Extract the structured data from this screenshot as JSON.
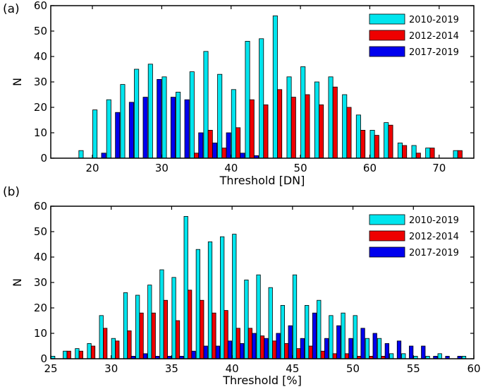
{
  "chart_data": [
    {
      "type": "bar",
      "panel_label": "(a)",
      "xlabel": "Threshold [DN]",
      "ylabel": "N",
      "xlim": [
        14,
        75
      ],
      "ylim": [
        0,
        60
      ],
      "xticks": [
        20,
        30,
        40,
        50,
        60,
        70
      ],
      "yticks": [
        0,
        10,
        20,
        30,
        40,
        50,
        60
      ],
      "grid": false,
      "legend_position": "top-right",
      "bar_group_step": 2,
      "series": [
        {
          "name": "2010-2019",
          "color": "#00e5ee",
          "x": [
            19,
            21,
            23,
            25,
            27,
            29,
            31,
            33,
            35,
            37,
            39,
            41,
            43,
            45,
            47,
            49,
            51,
            53,
            55,
            57,
            59,
            61,
            63,
            65,
            67,
            69,
            73
          ],
          "values": [
            3,
            19,
            23,
            29,
            35,
            37,
            32,
            26,
            34,
            42,
            33,
            27,
            46,
            47,
            56,
            32,
            36,
            30,
            32,
            25,
            17,
            11,
            14,
            6,
            5,
            4,
            3
          ]
        },
        {
          "name": "2012-2014",
          "color": "#ee0000",
          "x": [
            35,
            37,
            39,
            41,
            43,
            45,
            47,
            49,
            51,
            53,
            55,
            57,
            59,
            61,
            63,
            65,
            67,
            69,
            73
          ],
          "values": [
            2,
            11,
            4,
            12,
            23,
            21,
            27,
            24,
            25,
            21,
            28,
            20,
            11,
            9,
            13,
            5,
            2,
            4,
            3
          ]
        },
        {
          "name": "2017-2019",
          "color": "#0000ee",
          "x": [
            21,
            23,
            25,
            27,
            29,
            31,
            33,
            35,
            37,
            39,
            41,
            43
          ],
          "values": [
            2,
            18,
            22,
            24,
            31,
            24,
            23,
            10,
            6,
            10,
            2,
            1
          ]
        }
      ]
    },
    {
      "type": "bar",
      "panel_label": "(b)",
      "xlabel": "Threshold [%]",
      "ylabel": "N",
      "xlim": [
        25,
        60
      ],
      "ylim": [
        0,
        60
      ],
      "xticks": [
        25,
        30,
        35,
        40,
        45,
        50,
        55,
        60
      ],
      "yticks": [
        0,
        10,
        20,
        30,
        40,
        50,
        60
      ],
      "grid": false,
      "legend_position": "top-right",
      "bar_group_step": 1,
      "series": [
        {
          "name": "2010-2019",
          "color": "#00e5ee",
          "x": [
            25.5,
            26.5,
            27.5,
            28.5,
            29.5,
            30.5,
            31.5,
            32.5,
            33.5,
            34.5,
            35.5,
            36.5,
            37.5,
            38.5,
            39.5,
            40.5,
            41.5,
            42.5,
            43.5,
            44.5,
            45.5,
            46.5,
            47.5,
            48.5,
            49.5,
            50.5,
            51.5,
            52.5,
            53.5,
            54.5,
            55.5,
            56.5,
            57.5,
            58.5,
            59.5
          ],
          "values": [
            1,
            3,
            4,
            6,
            17,
            8,
            26,
            25,
            29,
            35,
            32,
            56,
            43,
            46,
            48,
            49,
            31,
            33,
            28,
            21,
            33,
            21,
            23,
            17,
            18,
            17,
            8,
            8,
            2,
            2,
            1,
            1,
            2,
            0,
            1
          ]
        },
        {
          "name": "2012-2014",
          "color": "#ee0000",
          "x": [
            26.5,
            27.5,
            28.5,
            29.5,
            30.5,
            31.5,
            32.5,
            33.5,
            34.5,
            35.5,
            36.5,
            37.5,
            38.5,
            39.5,
            40.5,
            41.5,
            42.5,
            43.5,
            44.5,
            45.5,
            46.5,
            47.5,
            48.5,
            49.5,
            50.5,
            51.5,
            52.5
          ],
          "values": [
            3,
            3,
            5,
            12,
            7,
            11,
            18,
            18,
            23,
            15,
            27,
            23,
            18,
            19,
            12,
            12,
            9,
            7,
            6,
            4,
            5,
            3,
            2,
            2,
            1,
            1,
            1
          ]
        },
        {
          "name": "2017-2019",
          "color": "#0000ee",
          "x": [
            31.5,
            32.5,
            33.5,
            34.5,
            35.5,
            36.5,
            37.5,
            38.5,
            39.5,
            40.5,
            41.5,
            42.5,
            43.5,
            44.5,
            45.5,
            46.5,
            47.5,
            48.5,
            49.5,
            50.5,
            51.5,
            52.5,
            53.5,
            54.5,
            55.5,
            56.5,
            57.5,
            58.5
          ],
          "values": [
            1,
            2,
            1,
            1,
            1,
            3,
            5,
            5,
            7,
            6,
            10,
            8,
            10,
            13,
            8,
            18,
            8,
            13,
            8,
            12,
            10,
            6,
            7,
            5,
            5,
            1,
            1,
            1
          ]
        }
      ]
    }
  ]
}
